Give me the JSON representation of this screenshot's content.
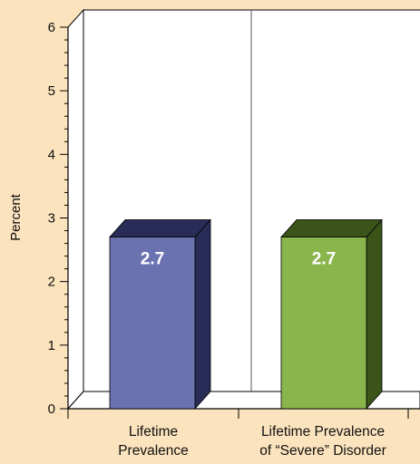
{
  "chart_data": {
    "type": "bar",
    "style": "3d",
    "ylabel": "Percent",
    "ylim": [
      0,
      6
    ],
    "yticks": [
      0,
      1,
      2,
      3,
      4,
      5,
      6
    ],
    "categories": [
      [
        "Lifetime",
        "Prevalence"
      ],
      [
        "Lifetime Prevalence",
        "of “Severe” Disorder"
      ]
    ],
    "values": [
      2.7,
      2.7
    ],
    "data_labels": [
      "2.7",
      "2.7"
    ],
    "colors": [
      "#6a72b0",
      "#8ab44c"
    ],
    "legend": "none",
    "grid": false
  },
  "colors": {
    "background": "#fbe3bd",
    "plot_wall": "#ffffff",
    "bar1_front": "#6a72b0",
    "bar1_side": "#282c56",
    "bar2_front": "#8ab44c",
    "bar2_side": "#3a541a"
  }
}
